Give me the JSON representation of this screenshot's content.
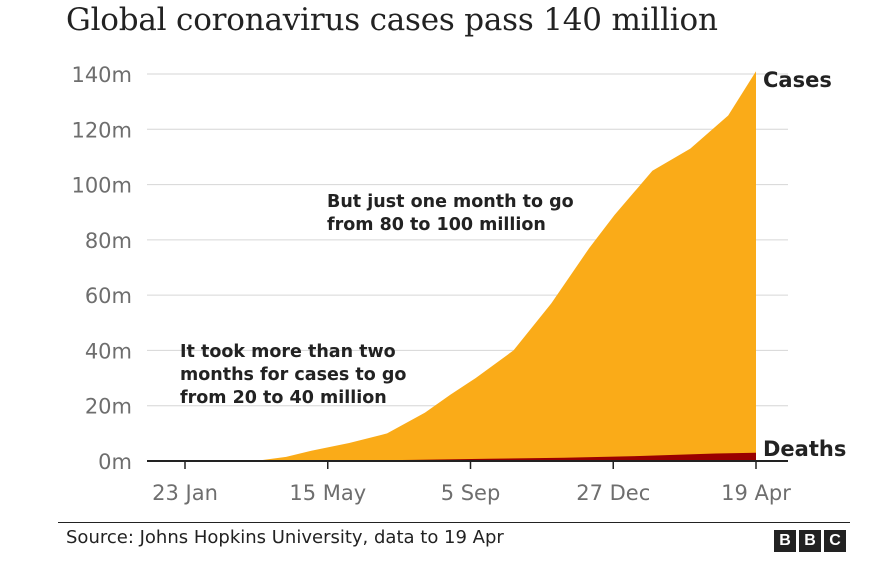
{
  "title": "Global coronavirus cases pass 140 million",
  "source": "Source: Johns Hopkins University, data to 19 Apr",
  "logo": [
    "B",
    "B",
    "C"
  ],
  "colors": {
    "cases": "#faab18",
    "deaths": "#990000",
    "grid": "#d6d6d6",
    "axis": "#222222",
    "text": "#222222"
  },
  "chart_data": {
    "type": "area",
    "title": "Global coronavirus cases pass 140 million",
    "xlabel": "",
    "ylabel": "",
    "ylim": [
      0,
      140
    ],
    "y_ticks": [
      0,
      20,
      40,
      60,
      80,
      100,
      120,
      140
    ],
    "y_tick_labels": [
      "0m",
      "20m",
      "40m",
      "60m",
      "80m",
      "100m",
      "120m",
      "140m"
    ],
    "x_ticks": [
      0,
      113,
      226,
      339,
      452
    ],
    "x_tick_labels": [
      "23 Jan",
      "15 May",
      "5 Sep",
      "27 Dec",
      "19 Apr"
    ],
    "x_units": "days since 22 Jan 2020",
    "xlim": [
      -10,
      465
    ],
    "series": [
      {
        "name": "Cases",
        "label": "Cases",
        "x": [
          0,
          30,
          60,
          80,
          100,
          130,
          160,
          190,
          210,
          230,
          260,
          290,
          320,
          340,
          370,
          400,
          430,
          452
        ],
        "values": [
          0,
          0.1,
          0.3,
          1.5,
          3.7,
          6.5,
          10,
          17.5,
          24,
          30,
          40,
          57,
          77,
          89,
          105,
          113,
          125,
          141
        ]
      },
      {
        "name": "Deaths",
        "label": "Deaths",
        "x": [
          0,
          60,
          120,
          180,
          240,
          300,
          360,
          420,
          452
        ],
        "values": [
          0,
          0.01,
          0.1,
          0.4,
          0.8,
          1.2,
          1.8,
          2.7,
          3.0
        ]
      }
    ],
    "annotations": [
      {
        "lines": [
          "But just one month to go",
          "from 80 to 100 million"
        ]
      },
      {
        "lines": [
          "It took more than two",
          "months for cases to go",
          "from 20 to 40 million"
        ]
      }
    ]
  }
}
